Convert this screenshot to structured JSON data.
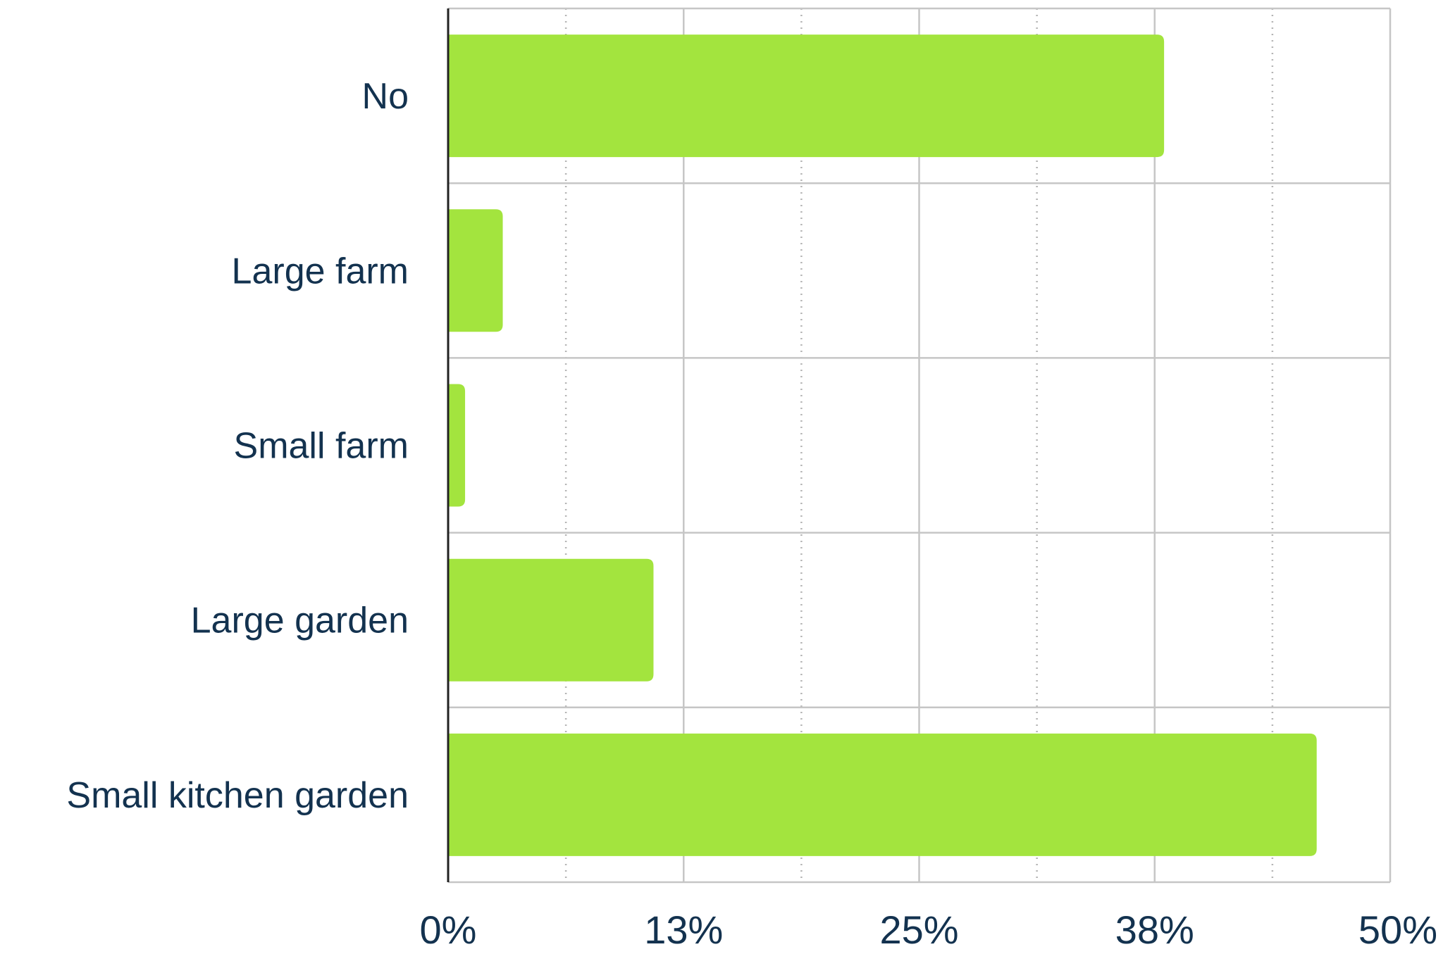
{
  "chart_data": {
    "type": "bar",
    "orientation": "horizontal",
    "categories": [
      "No",
      "Large farm",
      "Small farm",
      "Large garden",
      "Small kitchen garden"
    ],
    "values": [
      38.0,
      2.9,
      0.9,
      10.9,
      46.1
    ],
    "x_ticks": [
      "0%",
      "13%",
      "25%",
      "38%",
      "50%"
    ],
    "xlim": [
      0,
      50
    ],
    "title": "",
    "xlabel": "",
    "ylabel": "",
    "grid": true,
    "legend": "none",
    "bar_color": "#a3e43e",
    "text_color": "#13324f",
    "grid_color": "#c6c6c6"
  }
}
